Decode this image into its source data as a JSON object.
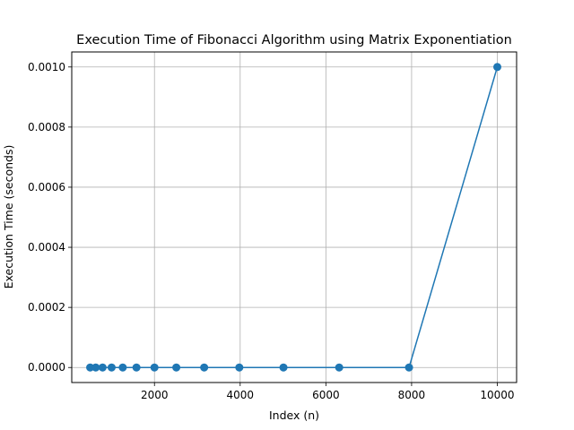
{
  "chart_data": {
    "type": "line",
    "title": "Execution Time of Fibonacci Algorithm using Matrix Exponentiation",
    "xlabel": "Index (n)",
    "ylabel": "Execution Time (seconds)",
    "xlim": [
      70,
      10450
    ],
    "ylim": [
      -5e-05,
      0.00105
    ],
    "xticks": [
      2000,
      4000,
      6000,
      8000,
      10000
    ],
    "xtick_labels": [
      "2000",
      "4000",
      "6000",
      "8000",
      "10000"
    ],
    "yticks": [
      0.0,
      0.0002,
      0.0004,
      0.0006,
      0.0008,
      0.001
    ],
    "ytick_labels": [
      "0.0000",
      "0.0002",
      "0.0004",
      "0.0006",
      "0.0008",
      "0.0010"
    ],
    "grid": true,
    "colors": {
      "series": "#1f77b4",
      "grid": "#b0b0b0",
      "axes": "#000000"
    },
    "series": [
      {
        "marker": "circle",
        "x": [
          500,
          630,
          790,
          1000,
          1260,
          1580,
          2000,
          2510,
          3160,
          3980,
          5010,
          6310,
          7940,
          10000
        ],
        "y": [
          0,
          0,
          0,
          0,
          0,
          0,
          0,
          0,
          0,
          0,
          0,
          0,
          0,
          0.001
        ]
      }
    ]
  }
}
